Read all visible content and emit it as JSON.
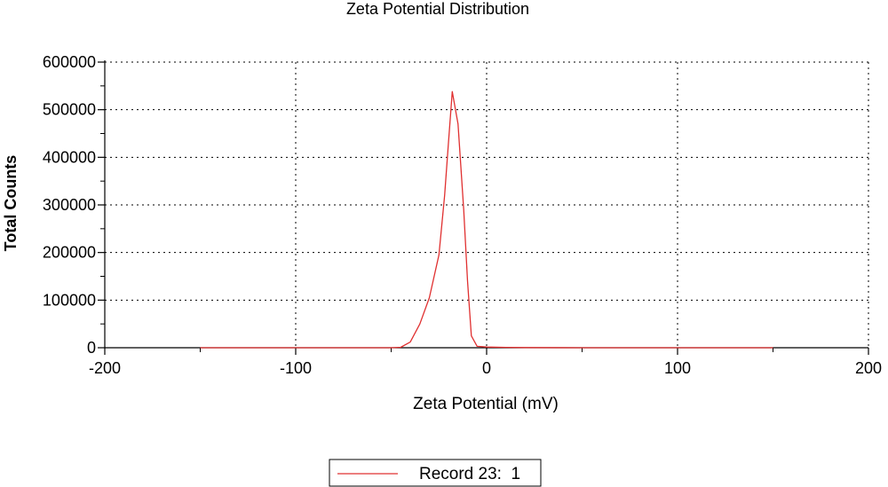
{
  "chart_data": {
    "type": "line",
    "title": "Zeta Potential Distribution",
    "xlabel": "Zeta Potential (mV)",
    "ylabel": "Total Counts",
    "xlim": [
      -200,
      200
    ],
    "ylim": [
      0,
      600000
    ],
    "x_ticks": [
      -200,
      -100,
      0,
      100,
      200
    ],
    "y_ticks": [
      0,
      100000,
      200000,
      300000,
      400000,
      500000,
      600000
    ],
    "grid": true,
    "legend_position": "bottom-center",
    "series": [
      {
        "name": "Record 23:  1",
        "color": "#e03030",
        "points": [
          [
            -150,
            0
          ],
          [
            -100,
            0
          ],
          [
            -50,
            0
          ],
          [
            -45,
            1000
          ],
          [
            -40,
            12000
          ],
          [
            -35,
            50000
          ],
          [
            -30,
            105000
          ],
          [
            -25,
            195000
          ],
          [
            -22,
            320000
          ],
          [
            -20,
            430000
          ],
          [
            -18,
            538000
          ],
          [
            -15,
            470000
          ],
          [
            -12,
            290000
          ],
          [
            -10,
            140000
          ],
          [
            -8,
            25000
          ],
          [
            -5,
            3000
          ],
          [
            0,
            1500
          ],
          [
            10,
            800
          ],
          [
            20,
            300
          ],
          [
            50,
            0
          ],
          [
            100,
            0
          ],
          [
            150,
            0
          ]
        ]
      }
    ]
  }
}
